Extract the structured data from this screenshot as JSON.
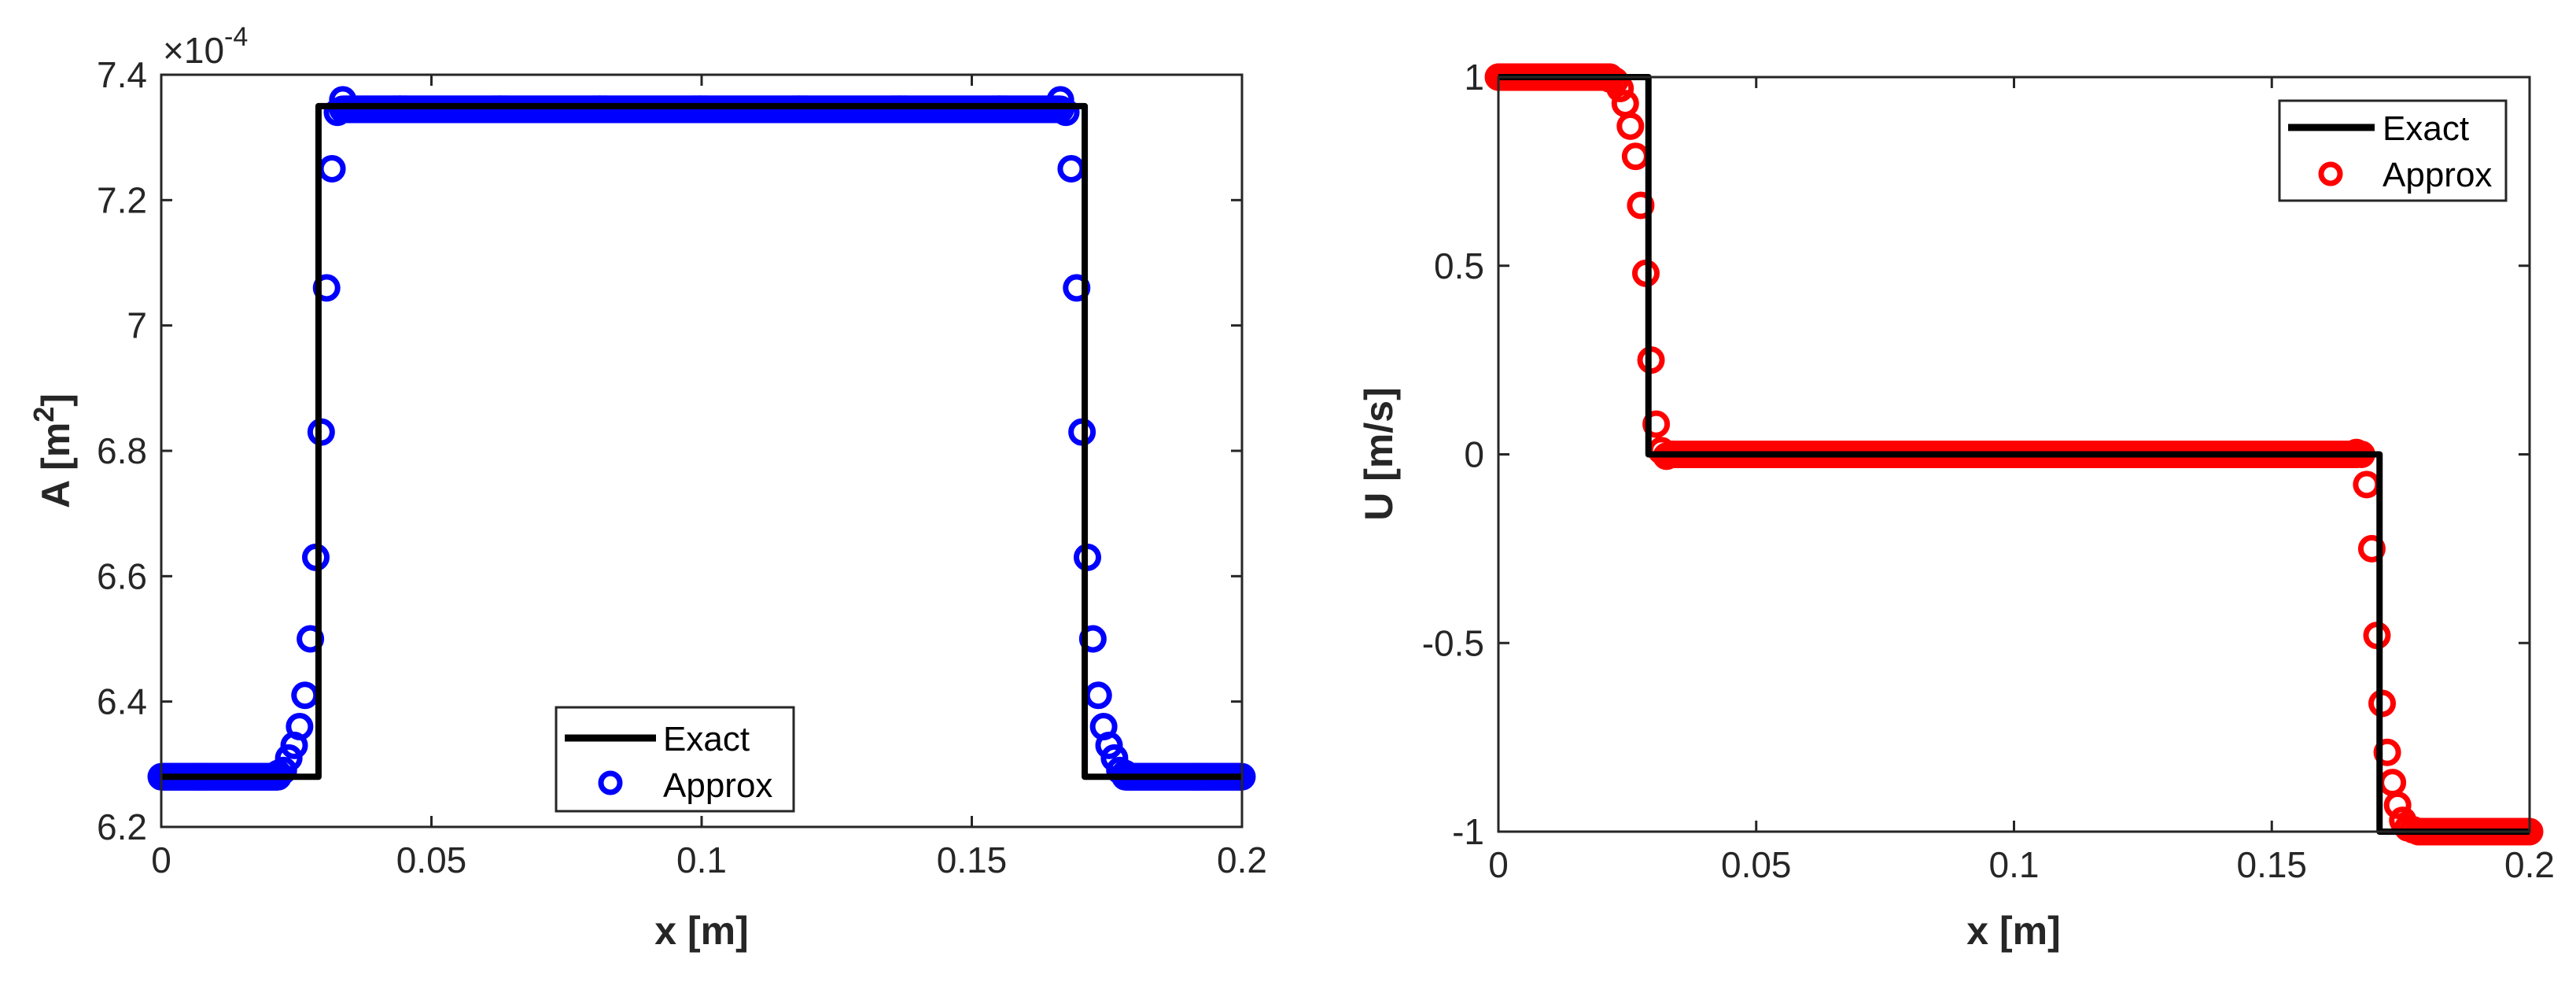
{
  "chart_data": [
    {
      "type": "line",
      "title": "",
      "xlabel": "x [m]",
      "ylabel": "A [m^2]",
      "ylabel_parts": {
        "base": "A [m",
        "sup": "2",
        "end": "]"
      },
      "exponent_label": {
        "base": "×10",
        "sup": "-4"
      },
      "xlim": [
        0,
        0.2
      ],
      "ylim": [
        6.2,
        7.4
      ],
      "y_scale": 0.0001,
      "xticks": [
        "0",
        "0.05",
        "0.1",
        "0.15",
        "0.2"
      ],
      "xtick_values": [
        0,
        0.05,
        0.1,
        0.15,
        0.2
      ],
      "yticks": [
        "6.2",
        "6.4",
        "6.6",
        "6.8",
        "7",
        "7.2",
        "7.4"
      ],
      "ytick_values": [
        6.2,
        6.4,
        6.6,
        6.8,
        7.0,
        7.2,
        7.4
      ],
      "grid": false,
      "legend_position": "south",
      "legend": [
        "Exact",
        "Approx"
      ],
      "series": [
        {
          "name": "Exact",
          "style": "line",
          "color": "#000000",
          "x": [
            0,
            0.0291,
            0.0291,
            0.1709,
            0.1709,
            0.2
          ],
          "y": [
            6.28,
            6.28,
            7.35,
            7.35,
            6.28,
            6.28
          ]
        },
        {
          "name": "Approx",
          "style": "circle-markers",
          "color": "#0000ff",
          "low": 6.28,
          "high": 7.345,
          "rise_x": [
            0.0216,
            0.0226,
            0.0236,
            0.0246,
            0.0256,
            0.0266,
            0.0276,
            0.0286,
            0.0296,
            0.0306,
            0.0316,
            0.0326,
            0.0336
          ],
          "rise_y": [
            6.285,
            6.29,
            6.31,
            6.33,
            6.36,
            6.41,
            6.5,
            6.63,
            6.83,
            7.06,
            7.25,
            7.34,
            7.36
          ]
        }
      ]
    },
    {
      "type": "line",
      "title": "",
      "xlabel": "x [m]",
      "ylabel": "U [m/s]",
      "xlim": [
        0,
        0.2
      ],
      "ylim": [
        -1,
        1
      ],
      "xticks": [
        "0",
        "0.05",
        "0.1",
        "0.15",
        "0.2"
      ],
      "xtick_values": [
        0,
        0.05,
        0.1,
        0.15,
        0.2
      ],
      "yticks": [
        "-1",
        "-0.5",
        "0",
        "0.5",
        "1"
      ],
      "ytick_values": [
        -1,
        -0.5,
        0,
        0.5,
        1
      ],
      "grid": false,
      "legend_position": "northeast",
      "legend": [
        "Exact",
        "Approx"
      ],
      "series": [
        {
          "name": "Exact",
          "style": "line",
          "color": "#000000",
          "x": [
            0,
            0.0291,
            0.0291,
            0.1709,
            0.1709,
            0.2
          ],
          "y": [
            1,
            1,
            0,
            0,
            -1,
            -1
          ]
        },
        {
          "name": "Approx",
          "style": "circle-markers",
          "color": "#ff0000",
          "high": 1,
          "mid": 0,
          "low": -1,
          "drop1_x": [
            0.0216,
            0.0226,
            0.0236,
            0.0246,
            0.0256,
            0.0266,
            0.0276,
            0.0286,
            0.0296,
            0.0306,
            0.0316,
            0.0326
          ],
          "drop1_y": [
            0.995,
            0.99,
            0.97,
            0.93,
            0.87,
            0.79,
            0.66,
            0.48,
            0.25,
            0.08,
            0.01,
            -0.005
          ],
          "drop2_x": [
            0.1664,
            0.1674,
            0.1684,
            0.1694,
            0.1704,
            0.1714,
            0.1724,
            0.1734,
            0.1744,
            0.1754,
            0.1764,
            0.1774
          ],
          "drop2_y": [
            0.005,
            0.0,
            -0.08,
            -0.25,
            -0.48,
            -0.66,
            -0.79,
            -0.87,
            -0.93,
            -0.97,
            -0.99,
            -0.995
          ]
        }
      ]
    }
  ],
  "legend": {
    "exact": "Exact",
    "approx": "Approx"
  },
  "colors": {
    "exact": "#000000",
    "approx_left": "#0000ff",
    "approx_right": "#ff0000",
    "axis": "#262626"
  }
}
